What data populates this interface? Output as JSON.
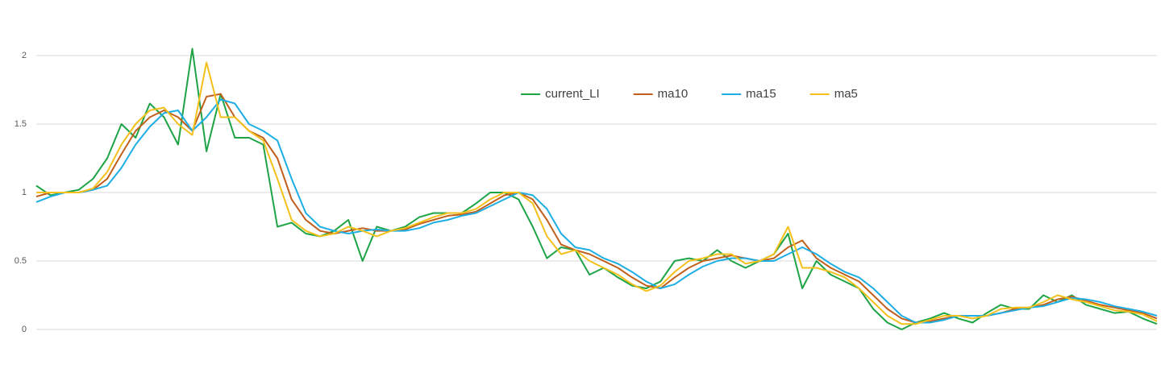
{
  "chart_data": {
    "type": "line",
    "series": [
      {
        "name": "current_LI",
        "color": "#1ea446",
        "values": [
          1.05,
          0.98,
          1.0,
          1.02,
          1.1,
          1.25,
          1.5,
          1.4,
          1.65,
          1.55,
          1.35,
          2.05,
          1.3,
          1.72,
          1.4,
          1.4,
          1.35,
          0.75,
          0.78,
          0.7,
          0.68,
          0.72,
          0.8,
          0.5,
          0.75,
          0.72,
          0.75,
          0.82,
          0.85,
          0.85,
          0.85,
          0.92,
          1.0,
          1.0,
          0.95,
          0.75,
          0.52,
          0.6,
          0.58,
          0.4,
          0.45,
          0.38,
          0.32,
          0.3,
          0.35,
          0.5,
          0.52,
          0.5,
          0.58,
          0.5,
          0.45,
          0.5,
          0.55,
          0.7,
          0.3,
          0.5,
          0.4,
          0.35,
          0.3,
          0.15,
          0.05,
          0.0,
          0.05,
          0.08,
          0.12,
          0.08,
          0.05,
          0.12,
          0.18,
          0.15,
          0.15,
          0.25,
          0.2,
          0.25,
          0.18,
          0.15,
          0.12,
          0.13,
          0.08,
          0.04
        ]
      },
      {
        "name": "ma10",
        "color": "#c0601c",
        "values": [
          0.97,
          1.0,
          1.0,
          1.0,
          1.02,
          1.1,
          1.28,
          1.45,
          1.55,
          1.6,
          1.55,
          1.45,
          1.7,
          1.72,
          1.55,
          1.45,
          1.4,
          1.25,
          0.95,
          0.8,
          0.72,
          0.7,
          0.72,
          0.74,
          0.72,
          0.72,
          0.73,
          0.77,
          0.8,
          0.83,
          0.84,
          0.86,
          0.92,
          0.98,
          1.0,
          0.95,
          0.8,
          0.62,
          0.58,
          0.55,
          0.5,
          0.45,
          0.38,
          0.32,
          0.3,
          0.38,
          0.45,
          0.5,
          0.52,
          0.54,
          0.52,
          0.5,
          0.52,
          0.6,
          0.65,
          0.52,
          0.45,
          0.4,
          0.35,
          0.25,
          0.15,
          0.08,
          0.05,
          0.06,
          0.08,
          0.1,
          0.1,
          0.1,
          0.12,
          0.15,
          0.16,
          0.18,
          0.22,
          0.24,
          0.21,
          0.18,
          0.16,
          0.14,
          0.12,
          0.08
        ]
      },
      {
        "name": "ma15",
        "color": "#1eaee4",
        "values": [
          0.93,
          0.97,
          1.0,
          1.0,
          1.02,
          1.05,
          1.18,
          1.35,
          1.48,
          1.58,
          1.6,
          1.45,
          1.55,
          1.68,
          1.65,
          1.5,
          1.45,
          1.38,
          1.1,
          0.85,
          0.75,
          0.72,
          0.7,
          0.72,
          0.73,
          0.72,
          0.72,
          0.74,
          0.78,
          0.8,
          0.83,
          0.85,
          0.9,
          0.95,
          1.0,
          0.98,
          0.88,
          0.7,
          0.6,
          0.58,
          0.52,
          0.48,
          0.42,
          0.35,
          0.3,
          0.33,
          0.4,
          0.46,
          0.5,
          0.52,
          0.52,
          0.5,
          0.5,
          0.55,
          0.6,
          0.55,
          0.48,
          0.42,
          0.38,
          0.3,
          0.2,
          0.1,
          0.05,
          0.05,
          0.07,
          0.1,
          0.1,
          0.1,
          0.12,
          0.14,
          0.16,
          0.17,
          0.2,
          0.23,
          0.22,
          0.2,
          0.17,
          0.15,
          0.13,
          0.1
        ]
      },
      {
        "name": "ma5",
        "color": "#f4c01c",
        "values": [
          1.0,
          1.0,
          1.0,
          1.0,
          1.03,
          1.15,
          1.35,
          1.5,
          1.6,
          1.62,
          1.5,
          1.42,
          1.95,
          1.55,
          1.55,
          1.45,
          1.38,
          1.1,
          0.8,
          0.72,
          0.68,
          0.7,
          0.75,
          0.72,
          0.68,
          0.72,
          0.74,
          0.78,
          0.82,
          0.85,
          0.85,
          0.88,
          0.95,
          1.0,
          1.0,
          0.92,
          0.68,
          0.55,
          0.58,
          0.5,
          0.45,
          0.4,
          0.33,
          0.28,
          0.32,
          0.42,
          0.5,
          0.52,
          0.55,
          0.55,
          0.48,
          0.5,
          0.55,
          0.75,
          0.45,
          0.45,
          0.42,
          0.38,
          0.3,
          0.2,
          0.1,
          0.04,
          0.04,
          0.07,
          0.1,
          0.1,
          0.08,
          0.1,
          0.15,
          0.16,
          0.16,
          0.2,
          0.25,
          0.22,
          0.2,
          0.17,
          0.14,
          0.13,
          0.11,
          0.06
        ]
      }
    ],
    "ylim": [
      -0.2,
      2.3
    ],
    "yticks": [
      0,
      0.5,
      1,
      1.5,
      2
    ],
    "grid": true,
    "legend": "top"
  }
}
